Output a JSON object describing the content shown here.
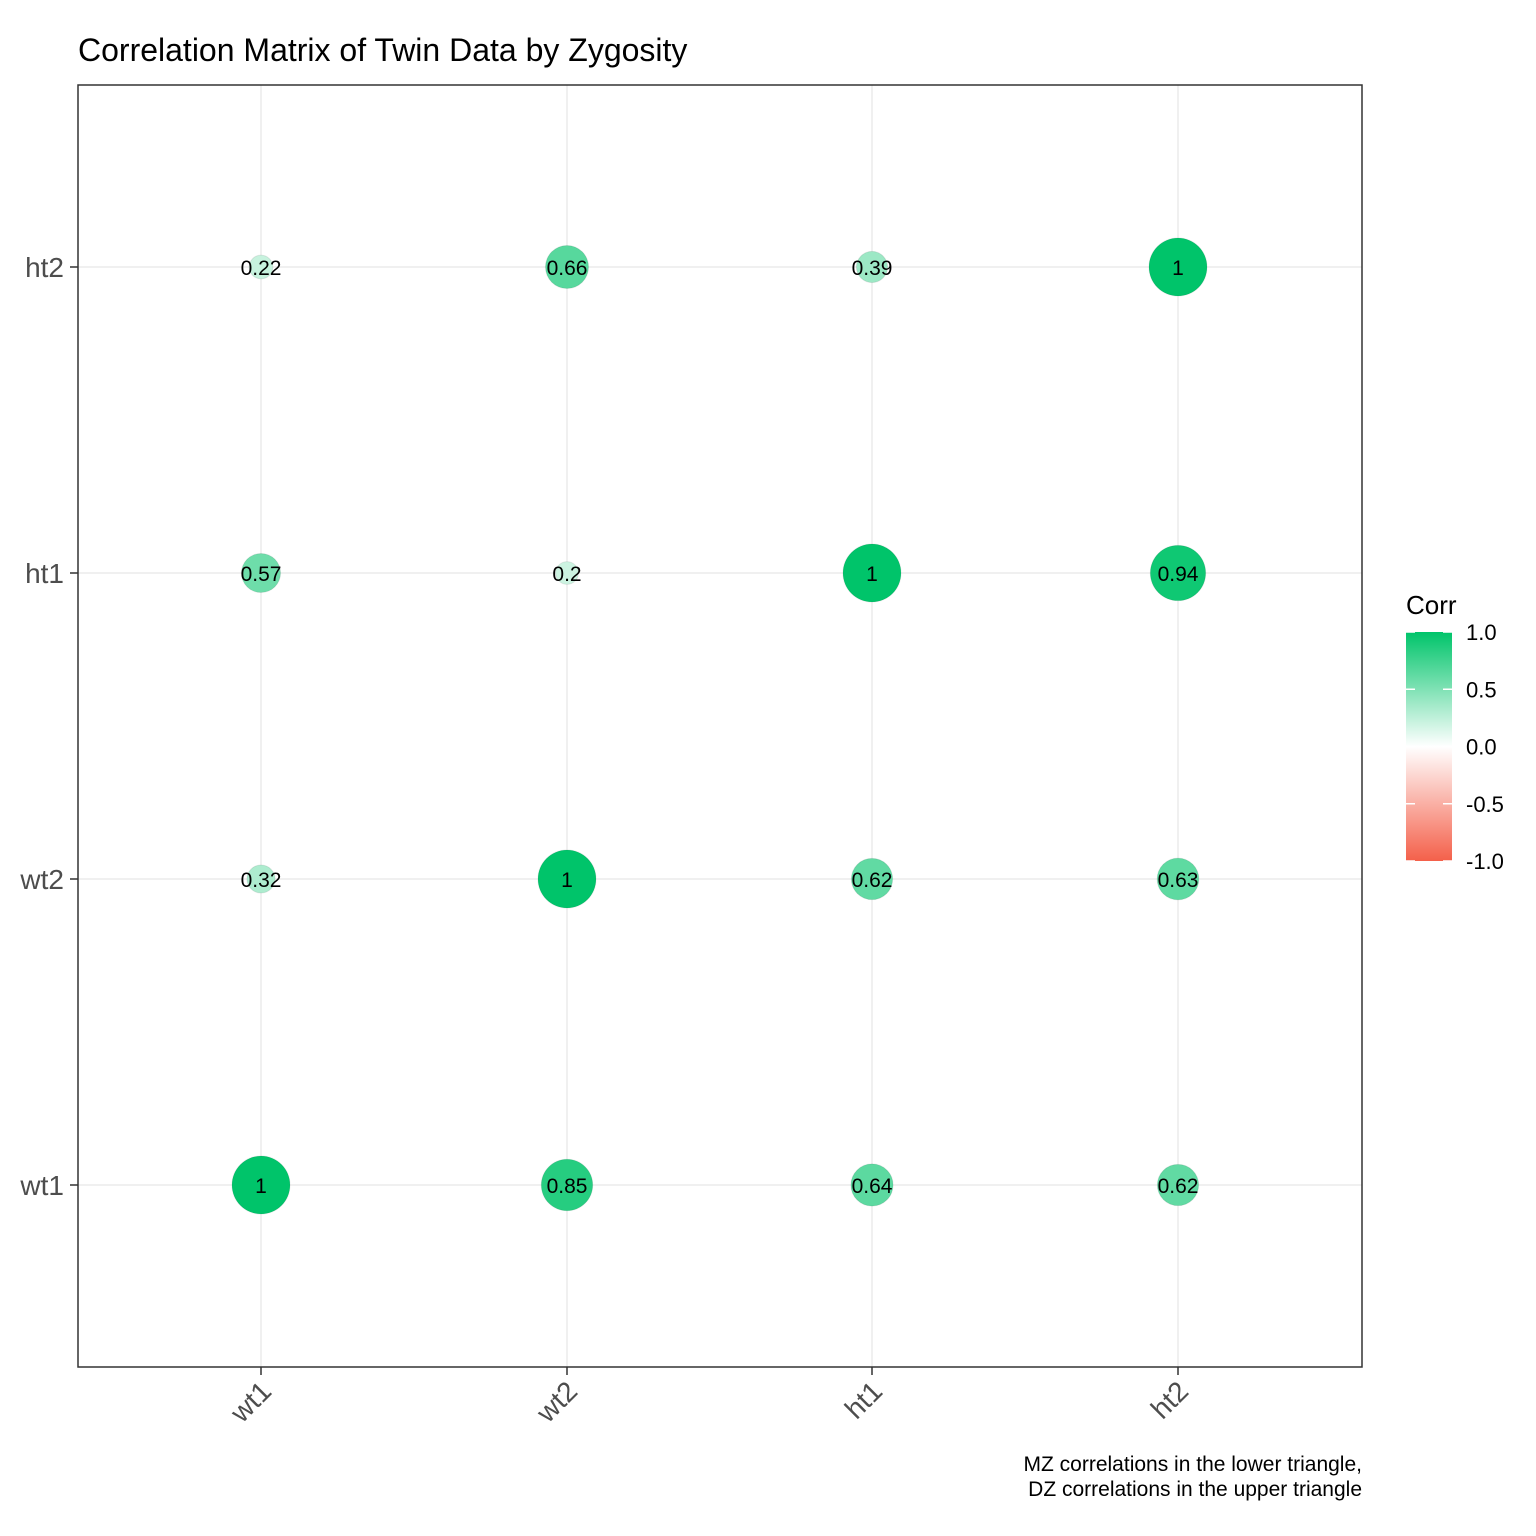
{
  "chart_data": {
    "type": "heatmap",
    "title": "Correlation Matrix of Twin Data by Zygosity",
    "xlabel": "",
    "ylabel": "",
    "x_categories": [
      "wt1",
      "wt2",
      "ht1",
      "ht2"
    ],
    "y_categories": [
      "wt1",
      "wt2",
      "ht1",
      "ht2"
    ],
    "cells": [
      {
        "x": "wt1",
        "y": "wt1",
        "value": 1,
        "label": "1"
      },
      {
        "x": "wt2",
        "y": "wt1",
        "value": 0.85,
        "label": "0.85"
      },
      {
        "x": "ht1",
        "y": "wt1",
        "value": 0.64,
        "label": "0.64"
      },
      {
        "x": "ht2",
        "y": "wt1",
        "value": 0.62,
        "label": "0.62"
      },
      {
        "x": "wt1",
        "y": "wt2",
        "value": 0.32,
        "label": "0.32"
      },
      {
        "x": "wt2",
        "y": "wt2",
        "value": 1,
        "label": "1"
      },
      {
        "x": "ht1",
        "y": "wt2",
        "value": 0.62,
        "label": "0.62"
      },
      {
        "x": "ht2",
        "y": "wt2",
        "value": 0.63,
        "label": "0.63"
      },
      {
        "x": "wt1",
        "y": "ht1",
        "value": 0.57,
        "label": "0.57"
      },
      {
        "x": "wt2",
        "y": "ht1",
        "value": 0.2,
        "label": "0.2"
      },
      {
        "x": "ht1",
        "y": "ht1",
        "value": 1,
        "label": "1"
      },
      {
        "x": "ht2",
        "y": "ht1",
        "value": 0.94,
        "label": "0.94"
      },
      {
        "x": "wt1",
        "y": "ht2",
        "value": 0.22,
        "label": "0.22"
      },
      {
        "x": "wt2",
        "y": "ht2",
        "value": 0.66,
        "label": "0.66"
      },
      {
        "x": "ht1",
        "y": "ht2",
        "value": 0.39,
        "label": "0.39"
      },
      {
        "x": "ht2",
        "y": "ht2",
        "value": 1,
        "label": "1"
      }
    ],
    "legend": {
      "title": "Corr",
      "position": "right",
      "ticks": [
        "1.0",
        "0.5",
        "0.0",
        "-0.5",
        "-1.0"
      ],
      "tick_values": [
        1.0,
        0.5,
        0.0,
        -0.5,
        -1.0
      ],
      "range": [
        -1,
        1
      ]
    },
    "colors": {
      "high": "#00C46A",
      "mid": "#FFFFFF",
      "low": "#F4604A"
    },
    "caption": [
      "MZ correlations in the lower triangle,",
      "DZ correlations in the upper triangle"
    ],
    "grid": true,
    "marker": "circle"
  }
}
